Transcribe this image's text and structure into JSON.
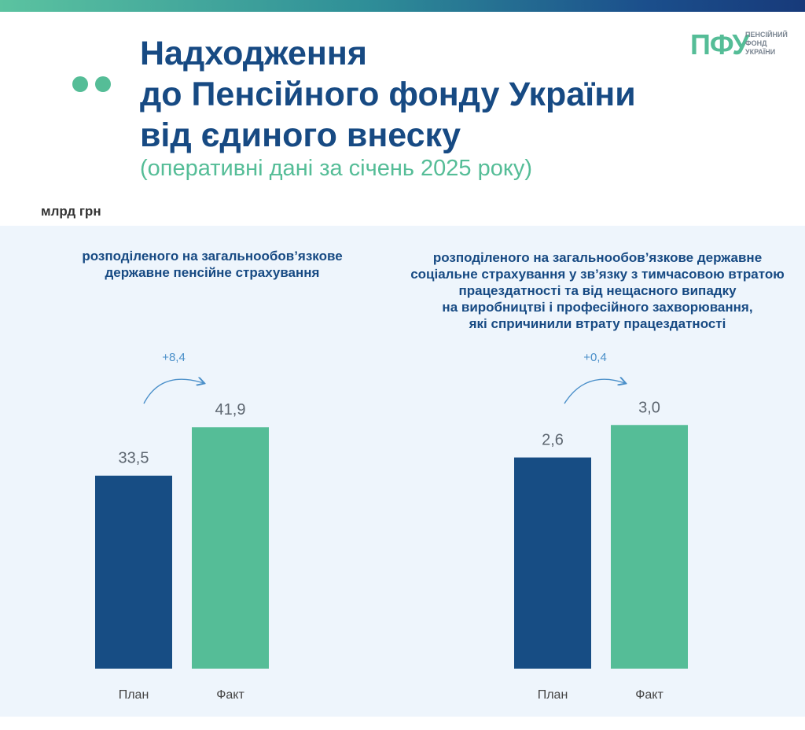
{
  "header": {
    "title_lines": [
      "Надходження",
      "до Пенсійного фонду України",
      "від єдиного внеску"
    ],
    "subtitle": "(оперативні дані за січень 2025 року)"
  },
  "logo": {
    "mark": "ПФУ",
    "text_lines": [
      "ПЕНСІЙНИЙ",
      "ФОНД",
      "УКРАЇНИ"
    ]
  },
  "unit_label": "млрд грн",
  "colors": {
    "plan": "#174d84",
    "fact": "#55bd97",
    "title": "#174a83",
    "accent": "#55bd97",
    "change": "#4a8fc9"
  },
  "chart_data": [
    {
      "type": "bar",
      "title_lines": [
        "розподіленого на загальнообов’язкове",
        "державне пенсійне страхування"
      ],
      "categories": [
        "План",
        "Факт"
      ],
      "values": [
        33.5,
        41.9
      ],
      "value_labels": [
        "33,5",
        "41,9"
      ],
      "change_label": "+8,4",
      "ylim": [
        0,
        47.8
      ]
    },
    {
      "type": "bar",
      "title_lines": [
        "розподіленого на загальнообов’язкове державне",
        "соціальне страхування у зв’язку з тимчасовою втратою",
        "працездатності та від нещасного випадку",
        "на виробництві і професійного захворювання,",
        "які спричинили втрату працездатності"
      ],
      "categories": [
        "План",
        "Факт"
      ],
      "values": [
        2.6,
        3.0
      ],
      "value_labels": [
        "2,6",
        "3,0"
      ],
      "change_label": "+0,4",
      "ylim": [
        0,
        3.39
      ]
    }
  ]
}
